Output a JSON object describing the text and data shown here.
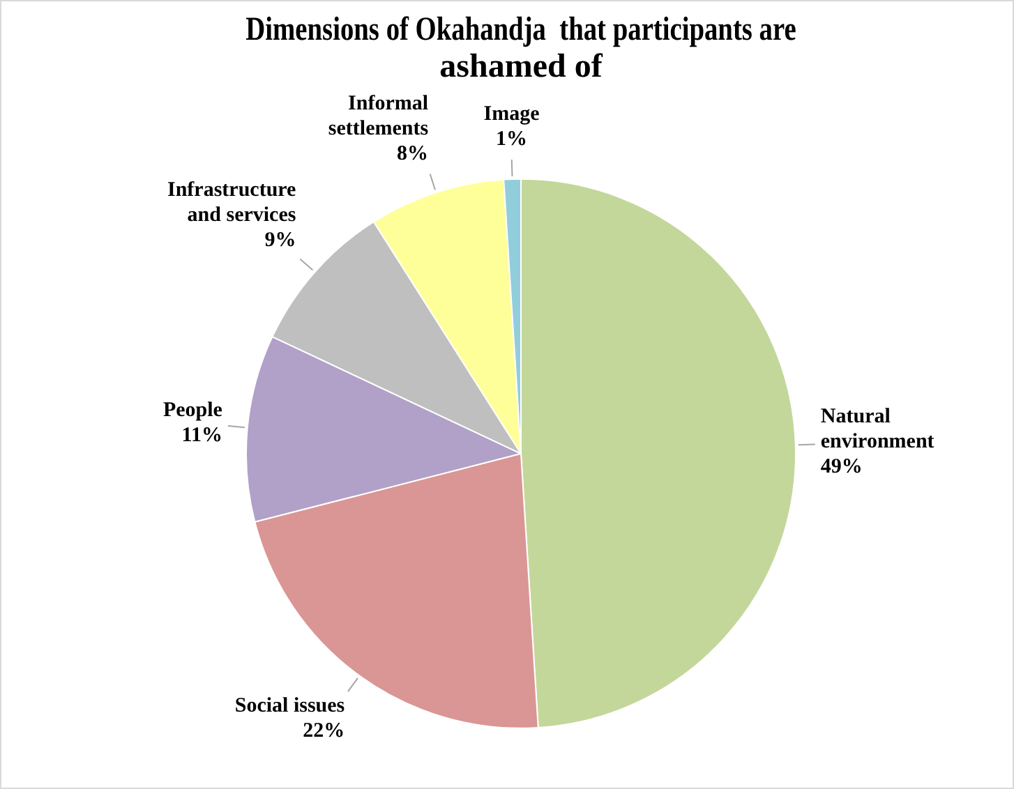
{
  "chart_data": {
    "type": "pie",
    "title": "Dimensions of Okahandja  that participants are ashamed of",
    "categories": [
      "Natural environment",
      "Social issues",
      "People",
      "Infrastructure and services",
      "Informal settlements",
      "Image"
    ],
    "values": [
      49,
      22,
      11,
      9,
      8,
      1
    ],
    "colors": [
      "#c4d79b",
      "#da9694",
      "#b1a0c7",
      "#bfbfbf",
      "#ffff99",
      "#92cddc"
    ],
    "value_labels": [
      "49%",
      "22%",
      "11%",
      "9%",
      "8%",
      "1%"
    ],
    "legend": false
  }
}
